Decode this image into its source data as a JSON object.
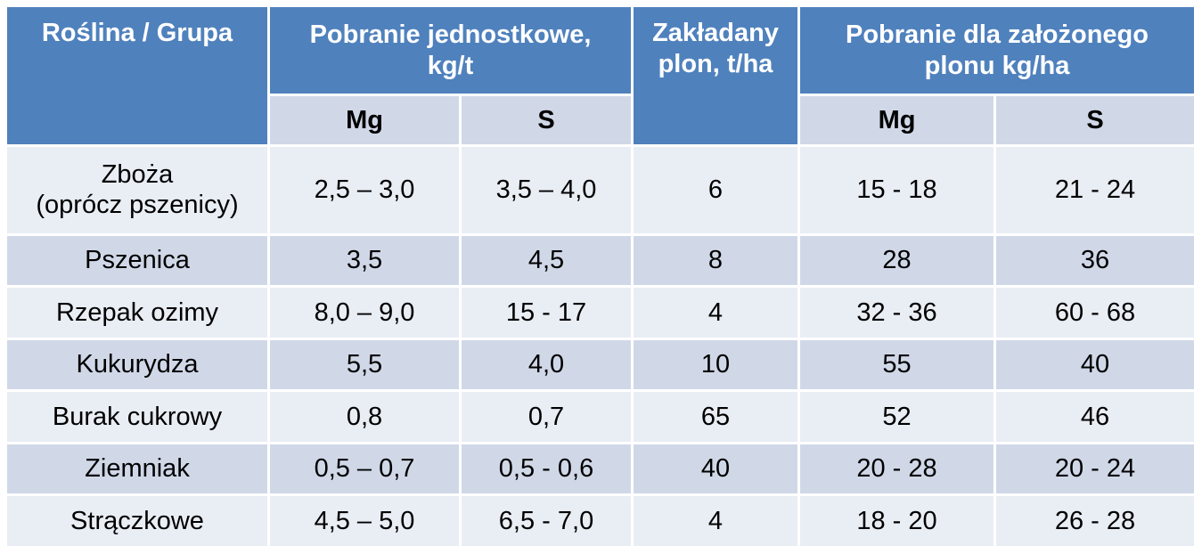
{
  "header": {
    "plant_group": "Roślina  / Grupa",
    "unit_uptake_line1": "Pobranie jednostkowe,",
    "unit_uptake_line2": "kg/t",
    "expected_yield_line1": "Zakładany",
    "expected_yield_line2": "plon, t/ha",
    "uptake_for_yield_line1": "Pobranie dla założonego",
    "uptake_for_yield_line2": "plonu kg/ha",
    "mg": "Mg",
    "s": "S"
  },
  "rows": [
    {
      "plant_line1": "Zboża",
      "plant_line2": "(oprócz pszenicy)",
      "unit_mg": "2,5 – 3,0",
      "unit_s": "3,5 – 4,0",
      "yield": "6",
      "total_mg": "15 - 18",
      "total_s": "21 - 24"
    },
    {
      "plant_line1": "Pszenica",
      "plant_line2": "",
      "unit_mg": "3,5",
      "unit_s": "4,5",
      "yield": "8",
      "total_mg": "28",
      "total_s": "36"
    },
    {
      "plant_line1": "Rzepak ozimy",
      "plant_line2": "",
      "unit_mg": "8,0 – 9,0",
      "unit_s": "15 - 17",
      "yield": "4",
      "total_mg": "32 - 36",
      "total_s": "60 - 68"
    },
    {
      "plant_line1": "Kukurydza",
      "plant_line2": "",
      "unit_mg": "5,5",
      "unit_s": "4,0",
      "yield": "10",
      "total_mg": "55",
      "total_s": "40"
    },
    {
      "plant_line1": "Burak cukrowy",
      "plant_line2": "",
      "unit_mg": "0,8",
      "unit_s": "0,7",
      "yield": "65",
      "total_mg": "52",
      "total_s": "46"
    },
    {
      "plant_line1": "Ziemniak",
      "plant_line2": "",
      "unit_mg": "0,5 – 0,7",
      "unit_s": "0,5 - 0,6",
      "yield": "40",
      "total_mg": "20 - 28",
      "total_s": "20 - 24"
    },
    {
      "plant_line1": "Strączkowe",
      "plant_line2": "",
      "unit_mg": "4,5 – 5,0",
      "unit_s": "6,5  - 7,0",
      "yield": "4",
      "total_mg": "18 - 20",
      "total_s": "26 - 28"
    }
  ]
}
